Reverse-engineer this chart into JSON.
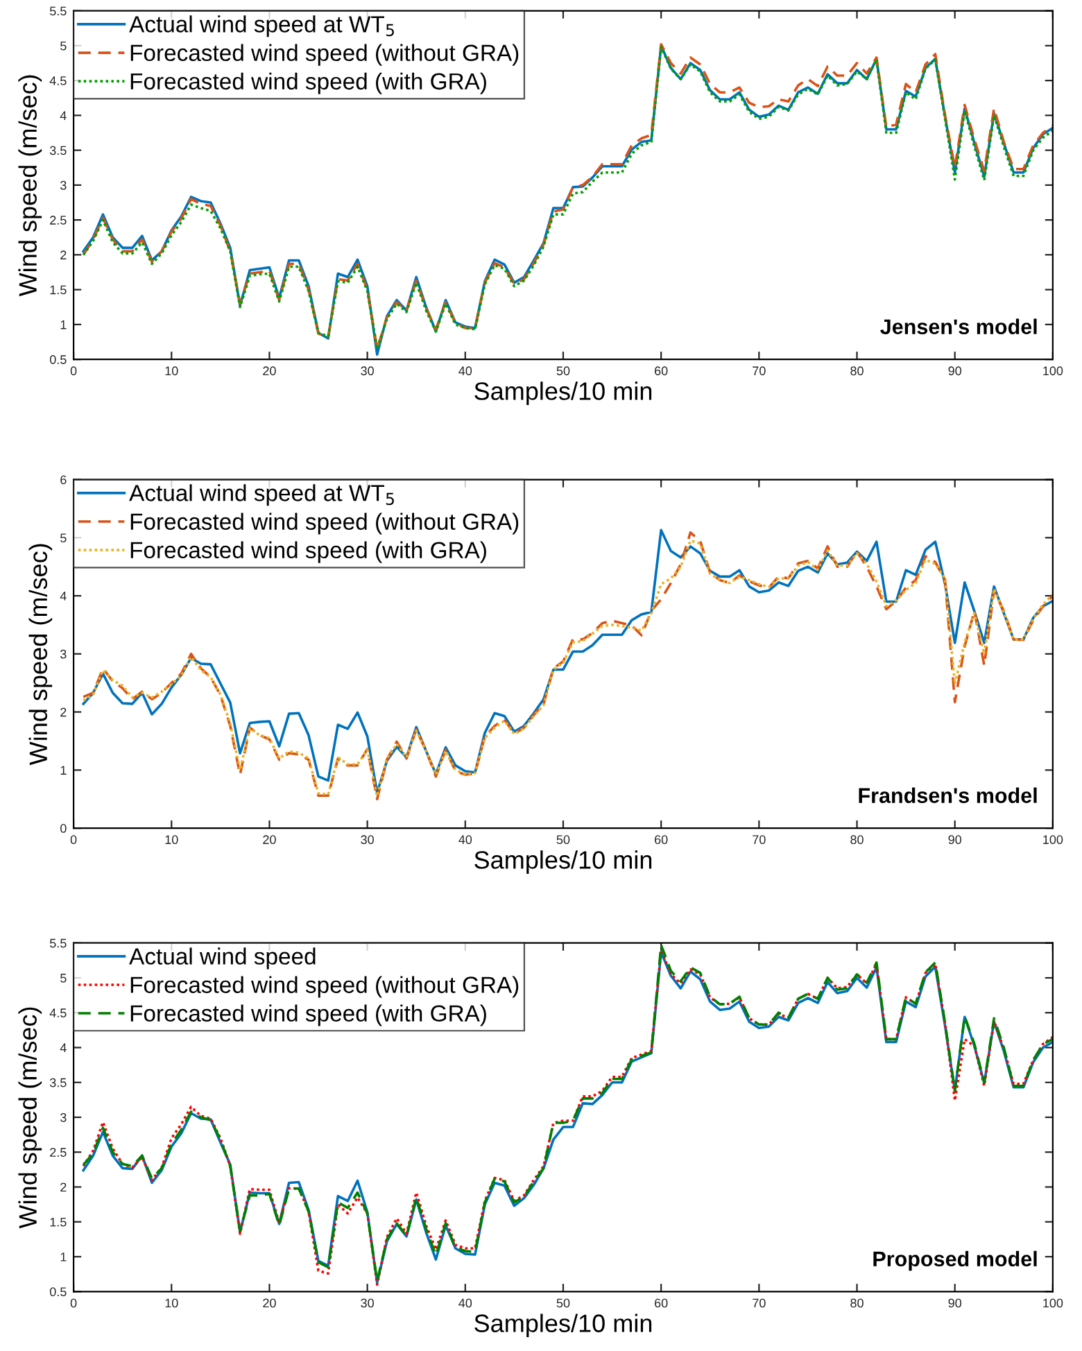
{
  "chart_data": [
    {
      "type": "line",
      "xlabel": "Samples/10 min",
      "ylabel": "Wind speed (m/sec)",
      "xlim": [
        0,
        100
      ],
      "xticks": [
        0,
        10,
        20,
        30,
        40,
        50,
        60,
        70,
        80,
        90,
        100
      ],
      "ylim": [
        0.5,
        5.5
      ],
      "yticks": [
        0.5,
        1,
        1.5,
        2,
        2.5,
        3,
        3.5,
        4,
        4.5,
        5,
        5.5
      ],
      "legend": "top left",
      "annotations": [
        "Jensen's model"
      ],
      "x": [
        1,
        2,
        3,
        4,
        5,
        6,
        7,
        8,
        9,
        10,
        11,
        12,
        13,
        14,
        15,
        16,
        17,
        18,
        19,
        20,
        21,
        22,
        23,
        24,
        25,
        26,
        27,
        28,
        29,
        30,
        31,
        32,
        33,
        34,
        35,
        36,
        37,
        38,
        39,
        40,
        41,
        42,
        43,
        44,
        45,
        46,
        47,
        48,
        49,
        50,
        51,
        52,
        53,
        54,
        55,
        56,
        57,
        58,
        59,
        60,
        61,
        62,
        63,
        64,
        65,
        66,
        67,
        68,
        69,
        70,
        71,
        72,
        73,
        74,
        75,
        76,
        77,
        78,
        79,
        80,
        81,
        82,
        83,
        84,
        85,
        86,
        87,
        88,
        89,
        90,
        91,
        92,
        93,
        94,
        95,
        96,
        97,
        98,
        99,
        100
      ],
      "series": [
        {
          "name": "Actual wind speed at WT$_{5}$",
          "color": "#0072bd",
          "line_style": "solid",
          "values": [
            2.05,
            2.25,
            2.58,
            2.25,
            2.1,
            2.1,
            2.27,
            1.92,
            2.05,
            2.35,
            2.55,
            2.83,
            2.77,
            2.75,
            2.45,
            2.1,
            1.27,
            1.78,
            1.8,
            1.82,
            1.38,
            1.92,
            1.92,
            1.55,
            0.88,
            0.8,
            1.73,
            1.68,
            1.93,
            1.55,
            0.57,
            1.12,
            1.35,
            1.2,
            1.68,
            1.25,
            0.9,
            1.35,
            1.03,
            0.97,
            0.95,
            1.62,
            1.93,
            1.86,
            1.6,
            1.68,
            1.92,
            2.17,
            2.67,
            2.67,
            2.97,
            2.98,
            3.11,
            3.27,
            3.27,
            3.27,
            3.51,
            3.62,
            3.64,
            5.0,
            4.68,
            4.52,
            4.75,
            4.65,
            4.36,
            4.23,
            4.23,
            4.33,
            4.08,
            3.98,
            4.01,
            4.14,
            4.08,
            4.33,
            4.4,
            4.31,
            4.59,
            4.46,
            4.46,
            4.65,
            4.52,
            4.81,
            3.8,
            3.8,
            4.35,
            4.27,
            4.68,
            4.81,
            3.98,
            3.18,
            4.1,
            3.6,
            3.12,
            4.03,
            3.6,
            3.18,
            3.18,
            3.53,
            3.73,
            3.82
          ]
        },
        {
          "name": "Forecasted wind speed (without GRA)",
          "color": "#d95319",
          "line_style": "dashed",
          "values": [
            2.0,
            2.22,
            2.53,
            2.22,
            2.05,
            2.05,
            2.22,
            1.9,
            2.05,
            2.33,
            2.52,
            2.8,
            2.73,
            2.7,
            2.42,
            2.05,
            1.3,
            1.73,
            1.75,
            1.77,
            1.35,
            1.87,
            1.87,
            1.5,
            0.87,
            0.82,
            1.65,
            1.63,
            1.87,
            1.5,
            0.65,
            1.1,
            1.32,
            1.2,
            1.63,
            1.23,
            0.93,
            1.32,
            1.02,
            0.95,
            0.95,
            1.6,
            1.88,
            1.82,
            1.58,
            1.65,
            1.88,
            2.15,
            2.62,
            2.65,
            2.97,
            3.0,
            3.12,
            3.3,
            3.3,
            3.3,
            3.57,
            3.67,
            3.72,
            5.02,
            4.75,
            4.6,
            4.83,
            4.73,
            4.45,
            4.33,
            4.33,
            4.4,
            4.18,
            4.12,
            4.13,
            4.23,
            4.2,
            4.43,
            4.52,
            4.42,
            4.7,
            4.57,
            4.57,
            4.75,
            4.6,
            4.83,
            3.83,
            3.87,
            4.45,
            4.33,
            4.73,
            4.88,
            4.0,
            3.25,
            4.15,
            3.65,
            3.2,
            4.1,
            3.62,
            3.23,
            3.23,
            3.57,
            3.75,
            3.85
          ]
        },
        {
          "name": "Forecasted wind speed (with GRA)",
          "color": "#00a000",
          "line_style": "dotted",
          "values": [
            2.0,
            2.2,
            2.5,
            2.18,
            2.02,
            2.02,
            2.18,
            1.87,
            2.02,
            2.28,
            2.47,
            2.72,
            2.67,
            2.63,
            2.38,
            2.05,
            1.25,
            1.7,
            1.72,
            1.73,
            1.33,
            1.83,
            1.83,
            1.48,
            0.88,
            0.83,
            1.62,
            1.6,
            1.83,
            1.48,
            0.65,
            1.08,
            1.3,
            1.18,
            1.6,
            1.2,
            0.9,
            1.3,
            1.0,
            0.95,
            0.93,
            1.58,
            1.85,
            1.8,
            1.55,
            1.63,
            1.85,
            2.12,
            2.58,
            2.58,
            2.88,
            2.9,
            3.05,
            3.18,
            3.18,
            3.18,
            3.45,
            3.57,
            3.62,
            4.98,
            4.67,
            4.52,
            4.73,
            4.63,
            4.33,
            4.2,
            4.2,
            4.3,
            4.05,
            3.95,
            3.98,
            4.12,
            4.07,
            4.3,
            4.38,
            4.3,
            4.57,
            4.43,
            4.45,
            4.63,
            4.52,
            4.8,
            3.75,
            3.75,
            4.33,
            4.23,
            4.67,
            4.8,
            3.95,
            3.08,
            4.07,
            3.55,
            3.07,
            4.0,
            3.55,
            3.13,
            3.13,
            3.5,
            3.68,
            3.78
          ]
        }
      ]
    },
    {
      "type": "line",
      "xlabel": "Samples/10 min",
      "ylabel": "Wind speed (m/sec)",
      "xlim": [
        0,
        100
      ],
      "xticks": [
        0,
        10,
        20,
        30,
        40,
        50,
        60,
        70,
        80,
        90,
        100
      ],
      "ylim": [
        0,
        6
      ],
      "yticks": [
        0,
        1,
        2,
        3,
        4,
        5,
        6
      ],
      "legend": "top left",
      "annotations": [
        "Frandsen's model"
      ],
      "x": [
        1,
        2,
        3,
        4,
        5,
        6,
        7,
        8,
        9,
        10,
        11,
        12,
        13,
        14,
        15,
        16,
        17,
        18,
        19,
        20,
        21,
        22,
        23,
        24,
        25,
        26,
        27,
        28,
        29,
        30,
        31,
        32,
        33,
        34,
        35,
        36,
        37,
        38,
        39,
        40,
        41,
        42,
        43,
        44,
        45,
        46,
        47,
        48,
        49,
        50,
        51,
        52,
        53,
        54,
        55,
        56,
        57,
        58,
        59,
        60,
        61,
        62,
        63,
        64,
        65,
        66,
        67,
        68,
        69,
        70,
        71,
        72,
        73,
        74,
        75,
        76,
        77,
        78,
        79,
        80,
        81,
        82,
        83,
        84,
        85,
        86,
        87,
        88,
        89,
        90,
        91,
        92,
        93,
        94,
        95,
        96,
        97,
        98,
        99,
        100
      ],
      "series": [
        {
          "name": "Actual wind speed at WT$_{5}$",
          "color": "#0072bd",
          "line_style": "solid",
          "values": [
            2.14,
            2.33,
            2.66,
            2.33,
            2.15,
            2.14,
            2.33,
            1.96,
            2.14,
            2.42,
            2.64,
            2.93,
            2.83,
            2.82,
            2.49,
            2.16,
            1.29,
            1.81,
            1.83,
            1.84,
            1.41,
            1.97,
            1.98,
            1.6,
            0.89,
            0.82,
            1.78,
            1.71,
            1.99,
            1.58,
            0.61,
            1.16,
            1.4,
            1.22,
            1.74,
            1.33,
            0.93,
            1.39,
            1.08,
            0.98,
            0.96,
            1.64,
            1.98,
            1.93,
            1.66,
            1.76,
            1.98,
            2.22,
            2.73,
            2.73,
            3.04,
            3.04,
            3.15,
            3.33,
            3.33,
            3.33,
            3.58,
            3.68,
            3.72,
            5.13,
            4.77,
            4.66,
            4.85,
            4.73,
            4.43,
            4.33,
            4.33,
            4.44,
            4.16,
            4.06,
            4.09,
            4.23,
            4.17,
            4.43,
            4.5,
            4.4,
            4.73,
            4.54,
            4.57,
            4.76,
            4.6,
            4.93,
            3.9,
            3.9,
            4.44,
            4.36,
            4.79,
            4.93,
            4.2,
            3.19,
            4.23,
            3.73,
            3.19,
            4.16,
            3.7,
            3.25,
            3.25,
            3.62,
            3.82,
            3.91
          ]
        },
        {
          "name": "Forecasted wind speed (without GRA)",
          "color": "#d95319",
          "line_style": "dashed",
          "values": [
            2.26,
            2.33,
            2.75,
            2.53,
            2.41,
            2.22,
            2.35,
            2.22,
            2.33,
            2.5,
            2.66,
            3.0,
            2.75,
            2.6,
            2.29,
            1.76,
            0.92,
            1.73,
            1.6,
            1.53,
            1.18,
            1.29,
            1.27,
            1.18,
            0.56,
            0.56,
            1.2,
            1.08,
            1.08,
            1.36,
            0.5,
            1.18,
            1.49,
            1.2,
            1.7,
            1.33,
            0.89,
            1.35,
            0.98,
            0.92,
            0.94,
            1.58,
            1.76,
            1.87,
            1.62,
            1.73,
            1.95,
            2.14,
            2.75,
            2.87,
            3.25,
            3.25,
            3.36,
            3.53,
            3.57,
            3.53,
            3.49,
            3.32,
            3.74,
            3.94,
            4.22,
            4.54,
            5.09,
            4.94,
            4.4,
            4.27,
            4.22,
            4.35,
            4.25,
            4.18,
            4.14,
            4.33,
            4.3,
            4.56,
            4.6,
            4.47,
            4.85,
            4.5,
            4.5,
            4.76,
            4.5,
            4.16,
            3.77,
            3.91,
            4.14,
            4.27,
            4.68,
            4.58,
            4.27,
            2.17,
            3.13,
            3.74,
            2.8,
            4.09,
            3.74,
            3.25,
            3.24,
            3.58,
            3.82,
            4.0
          ]
        },
        {
          "name": "Forecasted wind speed (with GRA)",
          "color": "#edb120",
          "line_style": "dotted",
          "values": [
            2.2,
            2.3,
            2.72,
            2.55,
            2.45,
            2.25,
            2.33,
            2.25,
            2.35,
            2.48,
            2.62,
            2.95,
            2.72,
            2.6,
            2.3,
            1.8,
            1.0,
            1.72,
            1.6,
            1.55,
            1.2,
            1.32,
            1.3,
            1.2,
            0.6,
            0.58,
            1.22,
            1.1,
            1.1,
            1.35,
            0.55,
            1.2,
            1.45,
            1.22,
            1.68,
            1.33,
            0.92,
            1.33,
            1.0,
            0.93,
            0.95,
            1.55,
            1.73,
            1.85,
            1.62,
            1.72,
            1.93,
            2.12,
            2.73,
            2.85,
            3.2,
            3.22,
            3.35,
            3.48,
            3.5,
            3.48,
            3.45,
            3.4,
            3.7,
            4.2,
            4.3,
            4.5,
            4.95,
            4.9,
            4.38,
            4.27,
            4.22,
            4.33,
            4.27,
            4.2,
            4.15,
            4.3,
            4.3,
            4.52,
            4.58,
            4.45,
            4.78,
            4.52,
            4.52,
            4.73,
            4.55,
            4.25,
            3.82,
            3.92,
            4.1,
            4.22,
            4.62,
            4.55,
            4.3,
            2.48,
            3.2,
            3.7,
            3.0,
            4.12,
            3.72,
            3.25,
            3.25,
            3.6,
            3.85,
            4.02
          ]
        }
      ]
    },
    {
      "type": "line",
      "xlabel": "Samples/10 min",
      "ylabel": "Wind speed (m/sec)",
      "xlim": [
        0,
        100
      ],
      "xticks": [
        0,
        10,
        20,
        30,
        40,
        50,
        60,
        70,
        80,
        90,
        100
      ],
      "ylim": [
        0.5,
        5.5
      ],
      "yticks": [
        0.5,
        1,
        1.5,
        2,
        2.5,
        3,
        3.5,
        4,
        4.5,
        5,
        5.5
      ],
      "legend": "top left",
      "annotations": [
        "Proposed model"
      ],
      "x": [
        1,
        2,
        3,
        4,
        5,
        6,
        7,
        8,
        9,
        10,
        11,
        12,
        13,
        14,
        15,
        16,
        17,
        18,
        19,
        20,
        21,
        22,
        23,
        24,
        25,
        26,
        27,
        28,
        29,
        30,
        31,
        32,
        33,
        34,
        35,
        36,
        37,
        38,
        39,
        40,
        41,
        42,
        43,
        44,
        45,
        46,
        47,
        48,
        49,
        50,
        51,
        52,
        53,
        54,
        55,
        56,
        57,
        58,
        59,
        60,
        61,
        62,
        63,
        64,
        65,
        66,
        67,
        68,
        69,
        70,
        71,
        72,
        73,
        74,
        75,
        76,
        77,
        78,
        79,
        80,
        81,
        82,
        83,
        84,
        85,
        86,
        87,
        88,
        89,
        90,
        91,
        92,
        93,
        94,
        95,
        96,
        97,
        98,
        99,
        100
      ],
      "series": [
        {
          "name": "Actual wind speed",
          "color": "#0072bd",
          "line_style": "solid",
          "values": [
            2.24,
            2.45,
            2.79,
            2.45,
            2.27,
            2.26,
            2.45,
            2.06,
            2.24,
            2.58,
            2.77,
            3.06,
            2.98,
            2.97,
            2.64,
            2.32,
            1.35,
            1.92,
            1.91,
            1.91,
            1.47,
            2.06,
            2.07,
            1.67,
            0.94,
            0.87,
            1.87,
            1.8,
            2.09,
            1.64,
            0.63,
            1.22,
            1.47,
            1.29,
            1.82,
            1.35,
            0.96,
            1.45,
            1.12,
            1.04,
            1.03,
            1.75,
            2.06,
            2.02,
            1.73,
            1.84,
            2.03,
            2.27,
            2.68,
            2.86,
            2.86,
            3.2,
            3.19,
            3.32,
            3.5,
            3.5,
            3.8,
            3.86,
            3.92,
            5.37,
            5.03,
            4.85,
            5.09,
            4.98,
            4.66,
            4.54,
            4.56,
            4.66,
            4.37,
            4.28,
            4.3,
            4.44,
            4.39,
            4.64,
            4.71,
            4.64,
            4.94,
            4.78,
            4.81,
            5.0,
            4.86,
            5.15,
            4.08,
            4.08,
            4.66,
            4.58,
            5.02,
            5.16,
            4.31,
            3.38,
            4.44,
            4.02,
            3.49,
            4.37,
            3.95,
            3.43,
            3.43,
            3.79,
            4.0,
            4.08
          ]
        },
        {
          "name": "Forecasted wind speed (without GRA)",
          "color": "#ff0000",
          "line_style": "dotted",
          "values": [
            2.3,
            2.52,
            2.93,
            2.55,
            2.33,
            2.28,
            2.43,
            2.1,
            2.28,
            2.7,
            2.9,
            3.15,
            3.02,
            2.98,
            2.7,
            2.3,
            1.33,
            1.97,
            1.96,
            1.96,
            1.48,
            1.98,
            1.98,
            1.65,
            0.8,
            0.76,
            1.75,
            1.62,
            1.85,
            1.62,
            0.6,
            1.28,
            1.55,
            1.33,
            1.92,
            1.45,
            1.1,
            1.52,
            1.17,
            1.12,
            1.12,
            1.8,
            2.13,
            2.1,
            1.8,
            1.88,
            2.1,
            2.3,
            2.92,
            2.95,
            2.95,
            3.3,
            3.3,
            3.38,
            3.58,
            3.58,
            3.85,
            3.9,
            3.95,
            5.4,
            5.05,
            4.92,
            5.12,
            5.05,
            4.72,
            4.62,
            4.63,
            4.72,
            4.42,
            4.33,
            4.33,
            4.48,
            4.43,
            4.7,
            4.77,
            4.7,
            5.0,
            4.85,
            4.87,
            5.05,
            4.92,
            5.2,
            4.12,
            4.12,
            4.72,
            4.63,
            5.07,
            5.2,
            4.35,
            3.24,
            4.12,
            4.02,
            3.45,
            4.38,
            3.98,
            3.48,
            3.48,
            3.82,
            4.05,
            4.15
          ]
        },
        {
          "name": "Forecasted wind speed (with GRA)",
          "color": "#008000",
          "line_style": "dashed",
          "values": [
            2.32,
            2.48,
            2.85,
            2.5,
            2.33,
            2.3,
            2.45,
            2.12,
            2.27,
            2.62,
            2.82,
            3.08,
            3.0,
            2.96,
            2.68,
            2.3,
            1.37,
            1.88,
            1.88,
            1.9,
            1.45,
            1.97,
            1.98,
            1.65,
            0.92,
            0.85,
            1.78,
            1.7,
            1.92,
            1.62,
            0.65,
            1.25,
            1.48,
            1.3,
            1.85,
            1.4,
            1.02,
            1.48,
            1.13,
            1.08,
            1.07,
            1.78,
            2.12,
            2.08,
            1.78,
            1.86,
            2.08,
            2.27,
            2.92,
            2.92,
            2.95,
            3.27,
            3.27,
            3.35,
            3.55,
            3.55,
            3.83,
            3.88,
            3.93,
            5.47,
            5.1,
            4.95,
            5.15,
            5.07,
            4.73,
            4.62,
            4.63,
            4.73,
            4.42,
            4.33,
            4.33,
            4.5,
            4.43,
            4.7,
            4.77,
            4.7,
            5.0,
            4.83,
            4.85,
            5.05,
            4.93,
            5.22,
            4.12,
            4.12,
            4.72,
            4.63,
            5.08,
            5.22,
            4.35,
            3.38,
            4.45,
            4.05,
            3.5,
            4.42,
            4.0,
            3.45,
            3.45,
            3.82,
            4.05,
            4.12
          ]
        }
      ]
    }
  ]
}
